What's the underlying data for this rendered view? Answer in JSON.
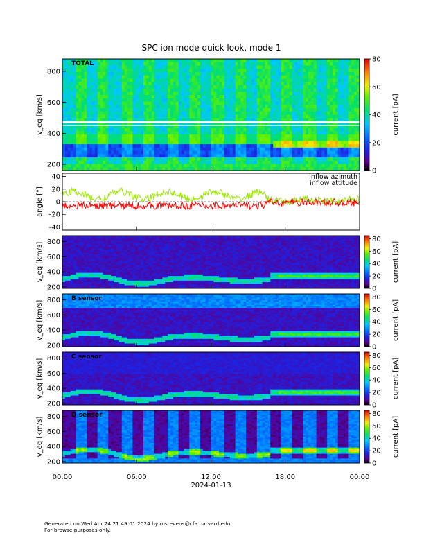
{
  "chart_data": [
    {
      "type": "heatmap",
      "title": "SPC ion mode quick look, mode 1",
      "panel_label": "TOTAL",
      "ylabel": "v_eq [km/s]",
      "ylim": [
        160,
        880
      ],
      "yticks": [
        "200",
        "400",
        "600",
        "800"
      ],
      "colorbar": {
        "label": "current [pA]",
        "range": [
          0,
          80
        ],
        "ticks": [
          "0",
          "20",
          "40",
          "60",
          "80"
        ],
        "scheme": "rainbow"
      },
      "features": {
        "white_line_y": 450,
        "gap_y": 470
      }
    },
    {
      "type": "line",
      "ylabel": "angle [°]",
      "ylim": [
        -45,
        45
      ],
      "yticks": [
        "40",
        "20",
        "0",
        "-20",
        "-40"
      ],
      "series": [
        {
          "name": "inflow azimuth",
          "color": "#ff0000"
        },
        {
          "name": "inflow attitude",
          "color": "#99e600"
        }
      ]
    },
    {
      "type": "heatmap",
      "panel_label": "",
      "ylabel": "v_eq [km/s]",
      "ylim": [
        180,
        880
      ],
      "yticks": [
        "200",
        "400",
        "600",
        "800"
      ],
      "colorbar": {
        "label": "current [pA]",
        "range": [
          0,
          85
        ],
        "ticks": [
          "0",
          "20",
          "40",
          "60",
          "80"
        ],
        "scheme": "rainbow"
      }
    },
    {
      "type": "heatmap",
      "panel_label": "B sensor",
      "ylabel": "v_eq [km/s]",
      "ylim": [
        180,
        880
      ],
      "yticks": [
        "200",
        "400",
        "600",
        "800"
      ],
      "colorbar": {
        "label": "current [pA]",
        "range": [
          0,
          85
        ],
        "ticks": [
          "0",
          "20",
          "40",
          "60",
          "80"
        ],
        "scheme": "rainbow"
      }
    },
    {
      "type": "heatmap",
      "panel_label": "C sensor",
      "ylabel": "v_eq [km/s]",
      "ylim": [
        180,
        880
      ],
      "yticks": [
        "200",
        "400",
        "600",
        "800"
      ],
      "colorbar": {
        "label": "current [pA]",
        "range": [
          0,
          85
        ],
        "ticks": [
          "0",
          "20",
          "40",
          "60",
          "80"
        ],
        "scheme": "rainbow"
      }
    },
    {
      "type": "heatmap",
      "panel_label": "D sensor",
      "ylabel": "v_eq [km/s]",
      "ylim": [
        180,
        880
      ],
      "yticks": [
        "200",
        "400",
        "600",
        "800"
      ],
      "colorbar": {
        "label": "current [pA]",
        "range": [
          0,
          85
        ],
        "ticks": [
          "0",
          "20",
          "40",
          "60",
          "80"
        ],
        "scheme": "rainbow"
      }
    }
  ],
  "x_axis": {
    "ticks": [
      "00:00",
      "06:00",
      "12:00",
      "18:00",
      "00:00"
    ],
    "date": "2024-01-13"
  },
  "footer": {
    "line1": "Generated on Wed Apr 24 21:49:01 2024 by mstevens@cfa.harvard.edu",
    "line2": "For browse purposes only."
  }
}
